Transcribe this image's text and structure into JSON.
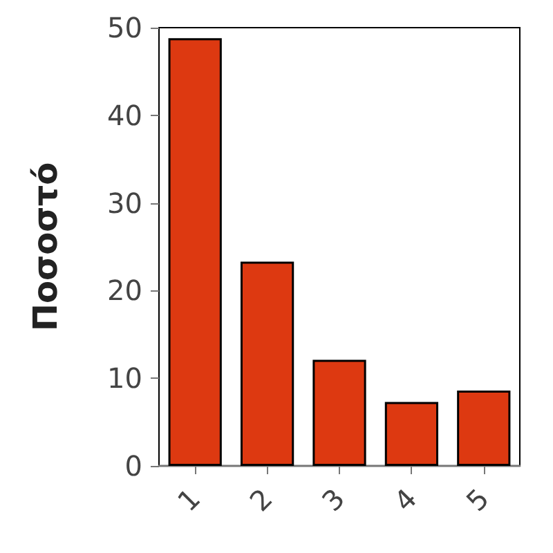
{
  "chart_data": {
    "type": "bar",
    "ylabel": "Ποσοστό",
    "categories": [
      "1",
      "2",
      "3",
      "4",
      "5"
    ],
    "values": [
      48.8,
      23.3,
      12.1,
      7.3,
      8.6
    ],
    "color": "#dd3911",
    "ylim": [
      0,
      50
    ],
    "yticks": [
      0,
      10,
      20,
      30,
      40,
      50
    ],
    "grid": false
  }
}
